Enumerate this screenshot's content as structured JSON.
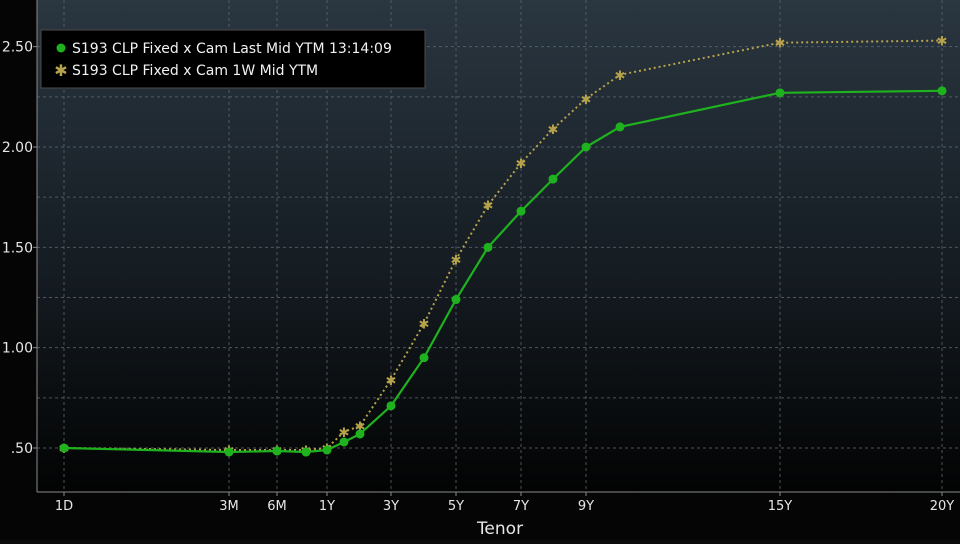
{
  "chart_data": {
    "type": "line",
    "xlabel": "Tenor",
    "ylabel": "",
    "ylim": [
      0.25,
      2.7
    ],
    "yticks": [
      0.5,
      1.0,
      1.5,
      2.0,
      2.5
    ],
    "ytick_labels": [
      ".50",
      "1.00",
      "1.50",
      "2.00",
      "2.50"
    ],
    "xtick_labels": [
      "1D",
      "3M",
      "6M",
      "1Y",
      "3Y",
      "5Y",
      "7Y",
      "9Y",
      "15Y",
      "20Y"
    ],
    "x_categories": [
      "1D",
      "3M",
      "6M",
      "9M",
      "1Y",
      "18M",
      "2Y",
      "3Y",
      "4Y",
      "5Y",
      "6Y",
      "7Y",
      "8Y",
      "9Y",
      "10Y",
      "15Y",
      "20Y"
    ],
    "grid": true,
    "legend_position": "top-left",
    "series": [
      {
        "name": "S193 CLP Fixed x Cam Last Mid YTM 13:14:09",
        "color": "#1fb21f",
        "style": "solid",
        "marker": "circle",
        "values": [
          0.5,
          0.48,
          0.485,
          0.48,
          0.49,
          0.53,
          0.57,
          0.71,
          0.95,
          1.24,
          1.5,
          1.68,
          1.84,
          2.0,
          2.1,
          2.27,
          2.28
        ]
      },
      {
        "name": "S193 CLP Fixed x Cam 1W Mid YTM",
        "color": "#b5a24a",
        "style": "dotted",
        "marker": "star",
        "values": [
          0.5,
          0.49,
          0.49,
          0.49,
          0.5,
          0.58,
          0.61,
          0.84,
          1.12,
          1.44,
          1.71,
          1.92,
          2.09,
          2.24,
          2.36,
          2.52,
          2.53
        ]
      }
    ]
  }
}
